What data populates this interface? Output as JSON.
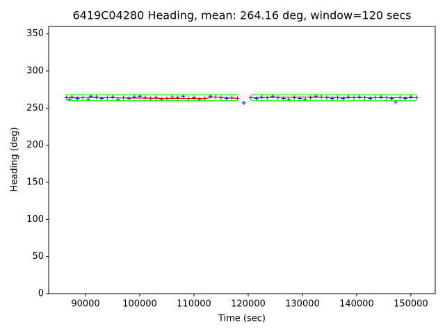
{
  "chart_data": {
    "type": "scatter",
    "title": "6419C04280 Heading, mean: 264.16 deg, window=120 secs",
    "xlabel": "Time (sec)",
    "ylabel": "Heading (deg)",
    "xlim": [
      83200,
      154500
    ],
    "ylim": [
      0,
      360
    ],
    "xticks": [
      90000,
      100000,
      110000,
      120000,
      130000,
      140000,
      150000
    ],
    "yticks": [
      0,
      50,
      100,
      150,
      200,
      250,
      300,
      350
    ],
    "series": [
      {
        "mode": "scatter",
        "marker": "+",
        "color": "#0000ff",
        "x": [
          86500,
          87000,
          87500,
          88500,
          89500,
          90500,
          91000,
          92000,
          93000,
          94000,
          95000,
          96000,
          97000,
          98000,
          99000,
          100000,
          101000,
          102000,
          103000,
          104000,
          105000,
          106000,
          107000,
          108000,
          109000,
          110000,
          111000,
          112000,
          113000,
          114000,
          115000,
          116000,
          117000,
          118000,
          119200,
          120500,
          121500,
          122500,
          123500,
          124500,
          125500,
          126500,
          127500,
          128500,
          129500,
          130500,
          131500,
          132500,
          133500,
          134500,
          135500,
          136500,
          137500,
          138500,
          139500,
          140500,
          141500,
          142500,
          143500,
          144500,
          145500,
          146500,
          147200,
          148000,
          149000,
          150000,
          151000
        ],
        "values": [
          264,
          262,
          265,
          263,
          264,
          262,
          266,
          265,
          263,
          264,
          265,
          262,
          264,
          263,
          265,
          266,
          264,
          263,
          264,
          262,
          263,
          265,
          264,
          266,
          263,
          264,
          262,
          263,
          266,
          265,
          264,
          263,
          264,
          263,
          257,
          264,
          263,
          265,
          264,
          266,
          264,
          263,
          262,
          264,
          263,
          262,
          264,
          266,
          265,
          264,
          263,
          264,
          263,
          265,
          264,
          265,
          264,
          263,
          264,
          265,
          264,
          263,
          258,
          264,
          263,
          265,
          264
        ]
      },
      {
        "mode": "line",
        "color": "#00ff00",
        "x": [
          86500,
          118000,
          null,
          120500,
          151000
        ],
        "values": [
          268,
          268,
          null,
          268,
          268
        ]
      },
      {
        "mode": "line",
        "color": "#00ff00",
        "x": [
          86500,
          118000,
          null,
          120500,
          151000
        ],
        "values": [
          260,
          260,
          null,
          260,
          260
        ]
      },
      {
        "mode": "line",
        "color": "#ff0000",
        "x": [
          86500,
          95000,
          105000,
          112000,
          114000,
          118000,
          null,
          120500,
          130000,
          140000,
          151000
        ],
        "values": [
          264,
          264,
          263,
          263,
          265,
          263,
          null,
          264,
          265,
          264,
          264
        ]
      }
    ]
  }
}
